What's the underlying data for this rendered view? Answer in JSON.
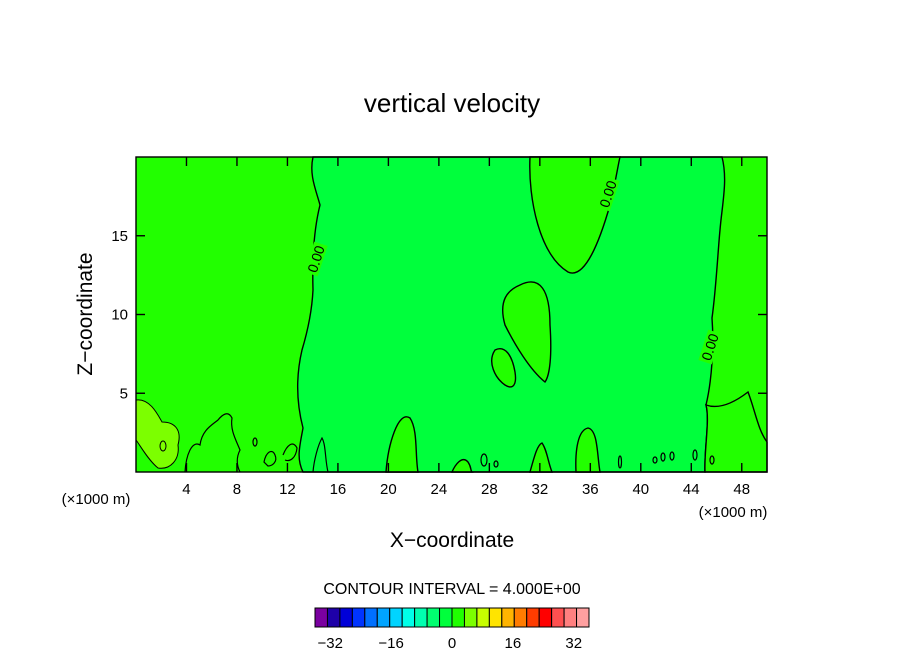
{
  "chart_data": {
    "type": "heatmap",
    "title": "vertical velocity",
    "xlabel": "X−coordinate",
    "ylabel": "Z−coordinate",
    "x_unit": "(×1000 m)",
    "y_unit": "(×1000 m)",
    "xlim": [
      0,
      50
    ],
    "ylim": [
      0,
      20
    ],
    "x_ticks": [
      4,
      8,
      12,
      16,
      20,
      24,
      28,
      32,
      36,
      40,
      44,
      48
    ],
    "y_ticks": [
      5,
      10,
      15
    ],
    "contour_labels": [
      "0.00",
      "0.00",
      "0.00"
    ],
    "contour_interval_text": "CONTOUR INTERVAL = 4.000E+00",
    "colorbar": {
      "min": -36,
      "max": 36,
      "step": 4,
      "tick_values": [
        -32,
        -16,
        0,
        16,
        32
      ],
      "tick_labels": [
        "−32",
        "−16",
        "0",
        "16",
        "32"
      ],
      "colors": [
        "#7a00a0",
        "#1e00a8",
        "#0000d8",
        "#0034ff",
        "#0070ff",
        "#00a4ff",
        "#00d4ff",
        "#00ffe8",
        "#00ffb0",
        "#00ff70",
        "#00ff3c",
        "#20ff00",
        "#7cff00",
        "#c8ff00",
        "#ffe400",
        "#ffb400",
        "#ff7c00",
        "#ff3c00",
        "#ff0000",
        "#ff5050",
        "#ff8080",
        "#ffa0a0"
      ]
    },
    "colors": {
      "positive_fill": "#22ff00",
      "near_zero_fill": "#00ff3c",
      "weak_positive_fill": "#7cff00",
      "contour_line": "#000000"
    }
  }
}
